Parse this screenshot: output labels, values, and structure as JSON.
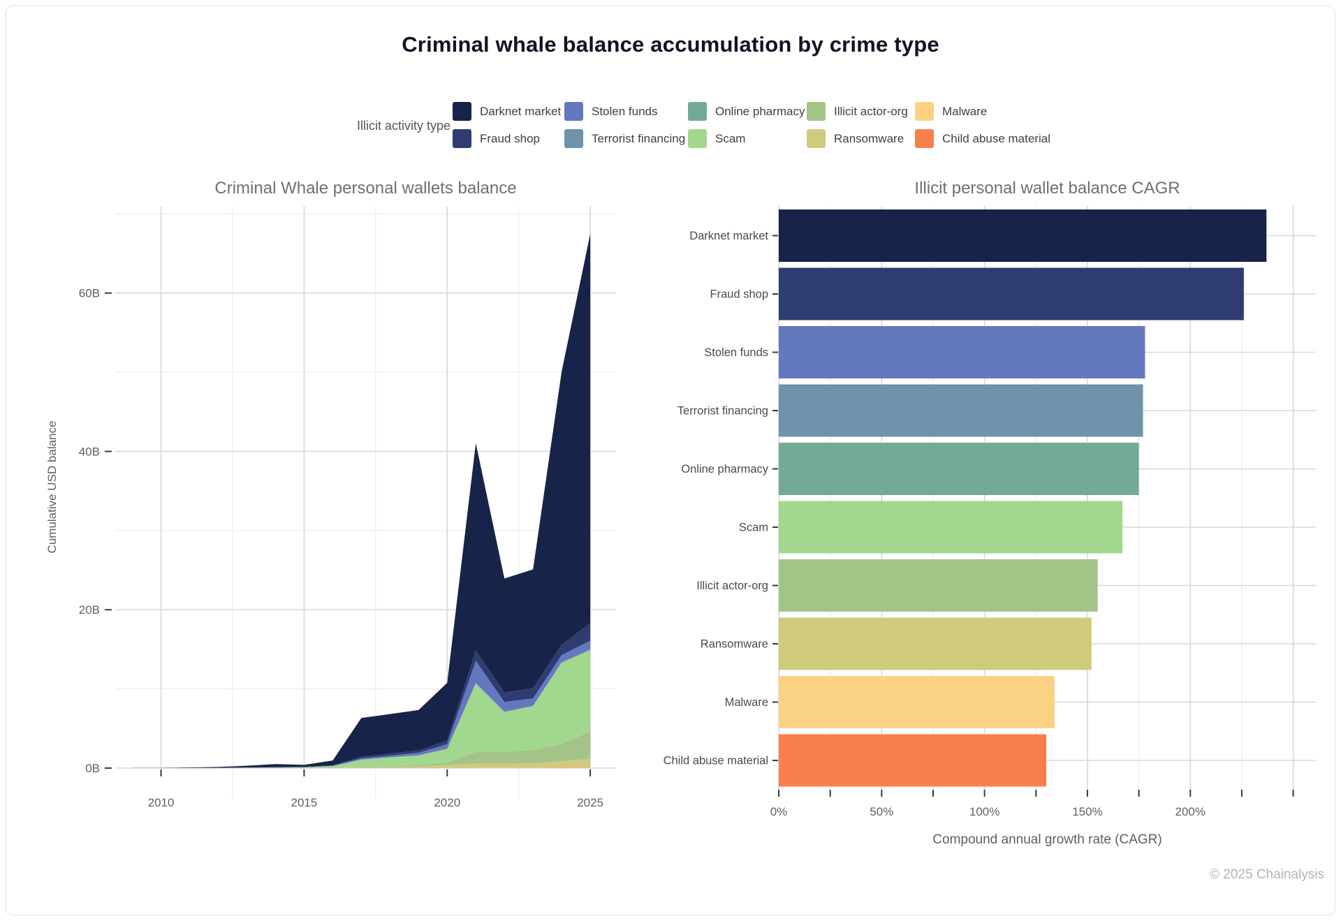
{
  "card": {
    "title": "Criminal whale balance accumulation by crime type",
    "footer": "© 2025 Chainalysis"
  },
  "legend": {
    "title": "Illicit activity type",
    "items": [
      {
        "label": "Darknet market",
        "color": "#182349"
      },
      {
        "label": "Fraud shop",
        "color": "#2e3c72"
      },
      {
        "label": "Stolen funds",
        "color": "#6478bf"
      },
      {
        "label": "Terrorist financing",
        "color": "#6e93ab"
      },
      {
        "label": "Online pharmacy",
        "color": "#72aa96"
      },
      {
        "label": "Scam",
        "color": "#a2d88e"
      },
      {
        "label": "Illicit actor-org",
        "color": "#a4c487"
      },
      {
        "label": "Ransomware",
        "color": "#d0ca7d"
      },
      {
        "label": "Malware",
        "color": "#fbd283"
      },
      {
        "label": "Child abuse material",
        "color": "#f8804d"
      }
    ]
  },
  "chart_data": [
    {
      "type": "area",
      "title": "Criminal Whale personal wallets balance",
      "xlabel": "",
      "ylabel": "Cumulative USD balance",
      "x": [
        2009,
        2010,
        2011,
        2012,
        2013,
        2014,
        2015,
        2016,
        2017,
        2018,
        2019,
        2020,
        2021,
        2022,
        2023,
        2024,
        2025
      ],
      "xlim": [
        2008.4,
        2025.9
      ],
      "ylim": [
        0,
        71
      ],
      "xticks": [
        2010,
        2015,
        2020,
        2025
      ],
      "xminor": [
        2012.5,
        2017.5,
        2022.5
      ],
      "yticks": [
        0,
        20,
        40,
        60
      ],
      "ytick_labels": [
        "0B",
        "20B",
        "40B",
        "60B"
      ],
      "yminor": [
        10,
        30,
        50,
        70
      ],
      "grid": true,
      "legend_position": "top",
      "series": [
        {
          "name": "Child abuse material",
          "color": "#f8804d",
          "values": [
            0.003,
            0.004,
            0.004,
            0.005,
            0.006,
            0.008,
            0.008,
            0.01,
            0.01,
            0.01,
            0.01,
            0.02,
            0.02,
            0.02,
            0.02,
            0.03,
            0.03
          ]
        },
        {
          "name": "Malware",
          "color": "#fbd283",
          "values": [
            0.002,
            0.003,
            0.003,
            0.004,
            0.005,
            0.006,
            0.006,
            0.008,
            0.01,
            0.01,
            0.01,
            0.02,
            0.03,
            0.03,
            0.03,
            0.04,
            0.05
          ]
        },
        {
          "name": "Ransomware",
          "color": "#d0ca7d",
          "values": [
            0,
            0,
            0,
            0,
            0.005,
            0.01,
            0.01,
            0.03,
            0.06,
            0.1,
            0.2,
            0.35,
            0.5,
            0.5,
            0.55,
            0.8,
            1.1
          ]
        },
        {
          "name": "Illicit actor-org",
          "color": "#a4c487",
          "values": [
            0,
            0,
            0,
            0,
            0.005,
            0.01,
            0.01,
            0.03,
            0.06,
            0.1,
            0.15,
            0.3,
            1.5,
            1.5,
            1.7,
            2.2,
            3.5
          ]
        },
        {
          "name": "Scam",
          "color": "#a2d88e",
          "values": [
            0,
            0,
            0,
            0.01,
            0.02,
            0.03,
            0.05,
            0.15,
            0.9,
            1.1,
            1.2,
            1.7,
            8.6,
            5.0,
            5.5,
            10.2,
            10.2
          ]
        },
        {
          "name": "Online pharmacy",
          "color": "#72aa96",
          "values": [
            0.002,
            0.003,
            0.004,
            0.005,
            0.006,
            0.008,
            0.01,
            0.015,
            0.02,
            0.03,
            0.03,
            0.04,
            0.05,
            0.05,
            0.05,
            0.06,
            0.06
          ]
        },
        {
          "name": "Terrorist financing",
          "color": "#6e93ab",
          "values": [
            0.001,
            0.002,
            0.003,
            0.004,
            0.005,
            0.006,
            0.008,
            0.01,
            0.02,
            0.02,
            0.03,
            0.04,
            0.05,
            0.05,
            0.05,
            0.06,
            0.06
          ]
        },
        {
          "name": "Stolen funds",
          "color": "#6478bf",
          "values": [
            0,
            0,
            0,
            0.005,
            0.01,
            0.02,
            0.02,
            0.05,
            0.15,
            0.2,
            0.3,
            0.55,
            2.8,
            1.2,
            0.9,
            0.9,
            1.1
          ]
        },
        {
          "name": "Fraud shop",
          "color": "#2e3c72",
          "values": [
            0,
            0.005,
            0.01,
            0.01,
            0.02,
            0.03,
            0.03,
            0.06,
            0.2,
            0.25,
            0.3,
            0.45,
            1.3,
            1.2,
            1.3,
            1.3,
            2.2
          ]
        },
        {
          "name": "Darknet market",
          "color": "#182349",
          "values": [
            0.01,
            0.02,
            0.05,
            0.1,
            0.22,
            0.38,
            0.26,
            0.6,
            4.9,
            5.0,
            5.1,
            7.3,
            26.2,
            14.4,
            15.0,
            34.5,
            49.2
          ]
        }
      ]
    },
    {
      "type": "bar",
      "title": "Illicit personal wallet balance CAGR",
      "xlabel": "Compound annual growth rate (CAGR)",
      "ylabel": "",
      "orientation": "horizontal",
      "categories": [
        "Darknet market",
        "Fraud shop",
        "Stolen funds",
        "Terrorist financing",
        "Online pharmacy",
        "Scam",
        "Illicit actor-org",
        "Ransomware",
        "Malware",
        "Child abuse material"
      ],
      "values": [
        237,
        226,
        178,
        177,
        175,
        167,
        155,
        152,
        134,
        130
      ],
      "unit": "%",
      "colors": [
        "#182349",
        "#2e3c72",
        "#6478bf",
        "#6e93ab",
        "#72aa96",
        "#a2d88e",
        "#a4c487",
        "#d0ca7d",
        "#fbd283",
        "#f8804d"
      ],
      "xlim": [
        0,
        261
      ],
      "xticks": [
        0,
        50,
        100,
        150,
        200
      ],
      "xmajor": [
        0,
        50,
        100,
        150,
        200,
        250
      ],
      "xminor": [
        25,
        75,
        125,
        175,
        225
      ],
      "grid": true
    }
  ]
}
